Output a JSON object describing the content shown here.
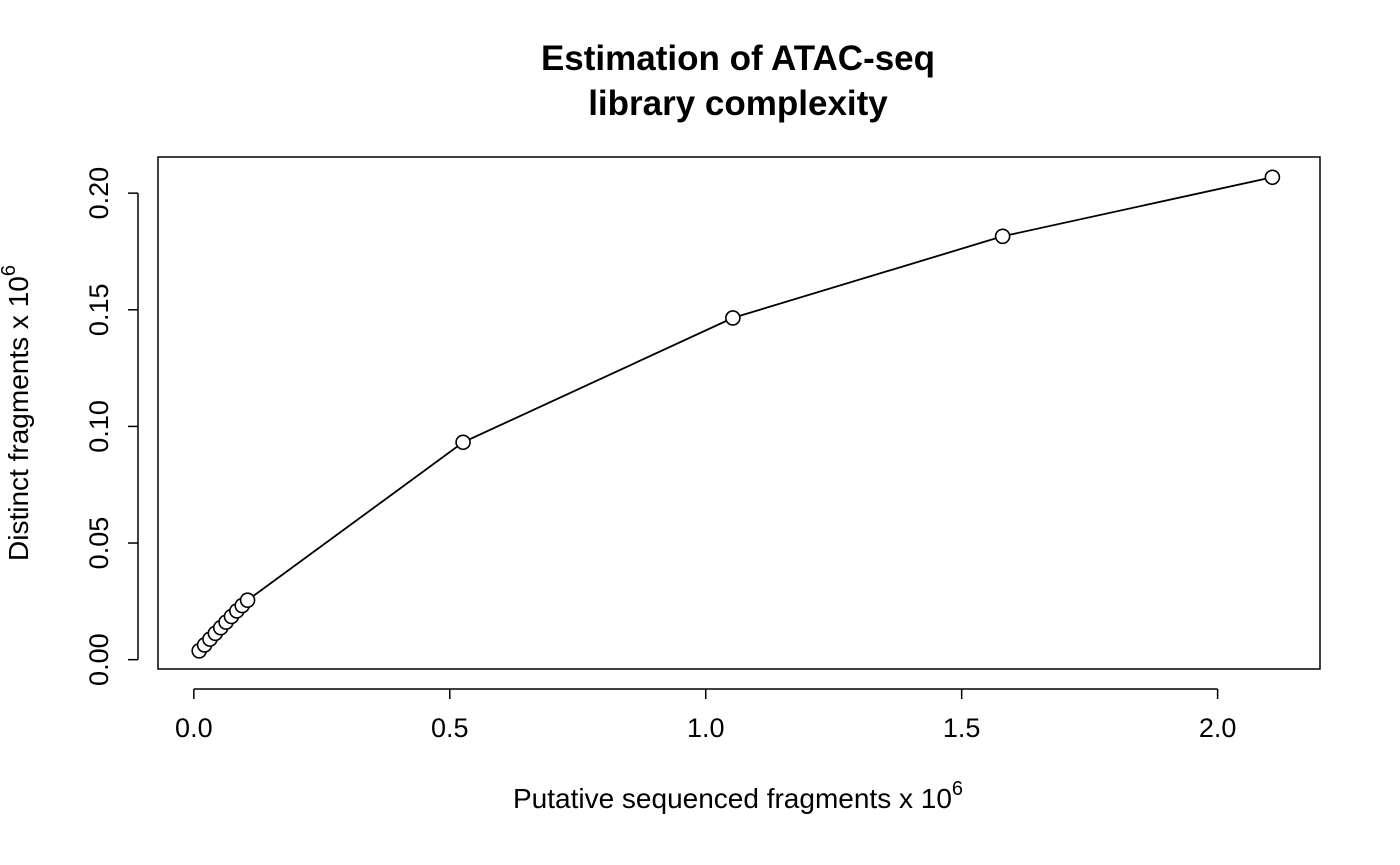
{
  "chart_data": {
    "type": "line",
    "title": [
      "Estimation of ATAC-seq",
      "library complexity"
    ],
    "xlabel": "Putative sequenced fragments x 10",
    "xlabel_exponent": "6",
    "ylabel": "Distinct fragments x 10",
    "ylabel_exponent": "6",
    "xlim": [
      -0.07,
      2.2
    ],
    "ylim": [
      -0.004,
      0.2155
    ],
    "xticks": [
      0.0,
      0.5,
      1.0,
      1.5,
      2.0
    ],
    "xtick_labels": [
      "0.0",
      "0.5",
      "1.0",
      "1.5",
      "2.0"
    ],
    "yticks": [
      0.0,
      0.05,
      0.1,
      0.15,
      0.2
    ],
    "ytick_labels": [
      "0.00",
      "0.05",
      "0.10",
      "0.15",
      "0.20"
    ],
    "grid": false,
    "marker": "open-circle",
    "series": [
      {
        "x": [
          0.0105,
          0.021,
          0.0315,
          0.042,
          0.0525,
          0.063,
          0.0735,
          0.084,
          0.0945,
          0.105,
          0.526,
          1.053,
          1.58,
          2.107
        ],
        "y": [
          0.0038,
          0.0063,
          0.0088,
          0.0113,
          0.0137,
          0.0161,
          0.0185,
          0.0209,
          0.0232,
          0.0255,
          0.0932,
          0.1465,
          0.1815,
          0.2068
        ]
      }
    ]
  }
}
